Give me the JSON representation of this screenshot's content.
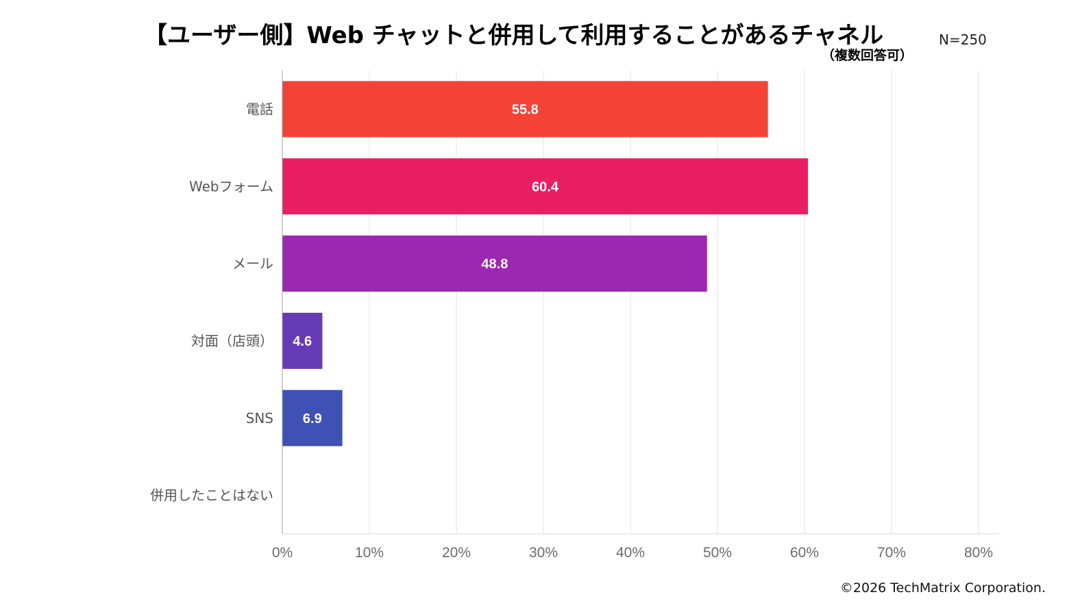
{
  "header": {
    "title": "【ユーザー側】Web チャットと併用して利用することがあるチャネル",
    "subtitle": "（複数回答可）",
    "sample_size": "N=250"
  },
  "footer": {
    "copyright": "©2026 TechMatrix Corporation."
  },
  "chart_data": {
    "type": "bar",
    "orientation": "horizontal",
    "categories": [
      "電話",
      "Webフォーム",
      "メール",
      "対面（店頭）",
      "SNS",
      "併用したことはない"
    ],
    "values": [
      55.8,
      60.4,
      48.8,
      4.6,
      6.9,
      0
    ],
    "value_labels": [
      "55.8",
      "60.4",
      "48.8",
      "4.6",
      "6.9",
      ""
    ],
    "colors": [
      "#F44336",
      "#E91E63",
      "#9C27B0",
      "#673AB7",
      "#3F51B5",
      "#2196F3"
    ],
    "xlim": [
      0,
      80
    ],
    "xticks": [
      0,
      10,
      20,
      30,
      40,
      50,
      60,
      70,
      80
    ],
    "xtick_labels": [
      "0%",
      "10%",
      "20%",
      "30%",
      "40%",
      "50%",
      "60%",
      "70%",
      "80%"
    ],
    "grid": true,
    "legend": "none"
  }
}
